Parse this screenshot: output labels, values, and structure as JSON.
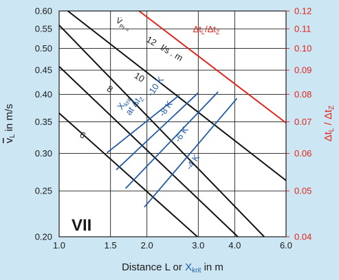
{
  "chart_data": {
    "type": "line",
    "title": "",
    "panel_label": "VII",
    "xlabel": {
      "prefix": "Distance L or ",
      "x_main": "X",
      "x_sub": "krit",
      "suffix": " in m"
    },
    "ylabel": {
      "main": "v",
      "sub": "L",
      "suffix": " in m/s"
    },
    "y2label": {
      "t1": "Δt",
      "t1_sub": "L",
      "sep": " / ",
      "t2": "Δt",
      "t2_sub": "Z"
    },
    "x_scale": "log",
    "y_scale": "log",
    "xlim": [
      1.0,
      6.0
    ],
    "ylim": [
      0.2,
      0.6
    ],
    "y2lim": [
      0.04,
      0.12
    ],
    "grid": true,
    "x_ticks": [
      {
        "value": 1.0,
        "label": "1.0"
      },
      {
        "value": 1.5,
        "label": "1.5"
      },
      {
        "value": 2.0,
        "label": "2.0"
      },
      {
        "value": 3.0,
        "label": "3.0"
      },
      {
        "value": 4.0,
        "label": "4.0"
      },
      {
        "value": 6.0,
        "label": "6.0"
      }
    ],
    "y_ticks": [
      {
        "value": 0.2,
        "label": "0.20"
      },
      {
        "value": 0.25,
        "label": "0.25"
      },
      {
        "value": 0.3,
        "label": "0.30"
      },
      {
        "value": 0.35,
        "label": "0.35"
      },
      {
        "value": 0.4,
        "label": "0.40"
      },
      {
        "value": 0.45,
        "label": "0.45"
      },
      {
        "value": 0.5,
        "label": "0.50"
      },
      {
        "value": 0.55,
        "label": "0.55"
      },
      {
        "value": 0.6,
        "label": "0.60"
      }
    ],
    "y2_ticks": [
      {
        "value": 0.04,
        "label": "0.04"
      },
      {
        "value": 0.05,
        "label": "0.05"
      },
      {
        "value": 0.06,
        "label": "0.06"
      },
      {
        "value": 0.07,
        "label": "0.07"
      },
      {
        "value": 0.08,
        "label": "0.08"
      },
      {
        "value": 0.09,
        "label": "0.09"
      },
      {
        "value": 0.1,
        "label": "0.10"
      },
      {
        "value": 0.11,
        "label": "0.11"
      },
      {
        "value": 0.12,
        "label": "0.12"
      }
    ],
    "flow_lines": [
      {
        "name": "12",
        "points": [
          [
            1.0,
            0.62
          ],
          [
            6.0,
            0.263
          ]
        ]
      },
      {
        "name": "10",
        "points": [
          [
            1.0,
            0.56
          ],
          [
            5.05,
            0.2
          ]
        ]
      },
      {
        "name": "8",
        "points": [
          [
            1.0,
            0.458
          ],
          [
            4.1,
            0.2
          ]
        ]
      },
      {
        "name": "6",
        "points": [
          [
            1.0,
            0.365
          ],
          [
            2.98,
            0.2
          ]
        ]
      }
    ],
    "flow_label_prefix": {
      "main": "V̇",
      "sub": "Pr ="
    },
    "flow_unit": "l/s . m",
    "xkrit_lines": [
      {
        "name": "-10 K",
        "points": [
          [
            1.46,
            0.301
          ],
          [
            2.58,
            0.398
          ]
        ]
      },
      {
        "name": "-8 K",
        "points": [
          [
            1.57,
            0.277
          ],
          [
            3.0,
            0.403
          ]
        ]
      },
      {
        "name": "-6 K",
        "points": [
          [
            1.69,
            0.253
          ],
          [
            3.51,
            0.405
          ]
        ]
      },
      {
        "name": "-4 K",
        "points": [
          [
            1.96,
            0.231
          ],
          [
            4.07,
            0.392
          ]
        ]
      }
    ],
    "xkrit_label": {
      "main": "X",
      "sub": "krit",
      "line2": "at Δt",
      "line2_sub": "Z"
    },
    "ratio_line": {
      "name": "Δt_L/Δt_Z",
      "label": {
        "t1": "Δt",
        "t1_sub": "L",
        "sep": "/",
        "t2": "Δt",
        "t2_sub": "Z"
      },
      "points": [
        [
          1.88,
          0.6
        ],
        [
          6.0,
          0.348
        ]
      ]
    },
    "colors": {
      "background": "#cde6f3",
      "plot_background": "#ffffff",
      "axis_red": "#e2231a",
      "xkrit_blue": "#1f5aa6",
      "text": "#1a1a1a"
    }
  }
}
